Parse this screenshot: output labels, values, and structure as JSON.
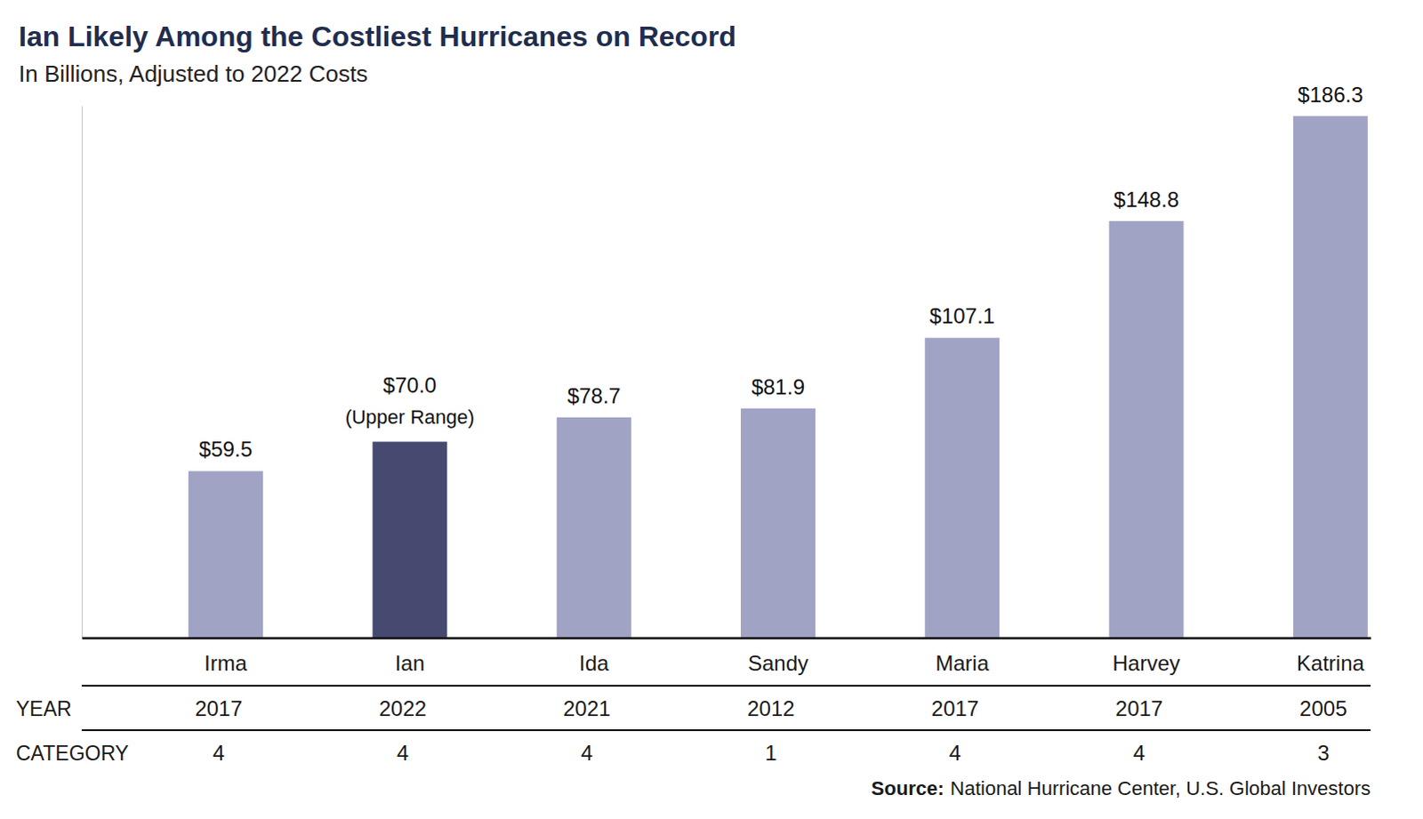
{
  "chart_data": {
    "type": "bar",
    "title": "Ian Likely Among the Costliest Hurricanes on Record",
    "subtitle": "In Billions, Adjusted to 2022 Costs",
    "categories": [
      "Irma",
      "Ian",
      "Ida",
      "Sandy",
      "Maria",
      "Harvey",
      "Katrina"
    ],
    "values": [
      59.5,
      70.0,
      78.7,
      81.9,
      107.1,
      148.8,
      186.3
    ],
    "value_labels": [
      "$59.5",
      "$70.0",
      "$78.7",
      "$81.9",
      "$107.1",
      "$148.8",
      "$186.3"
    ],
    "data_labels": true,
    "colors": [
      "#a0a3c4",
      "#474a70",
      "#a0a3c4",
      "#a0a3c4",
      "#a0a3c4",
      "#a0a3c4",
      "#a0a3c4"
    ],
    "ylim": [
      0,
      190
    ],
    "tick_labels": "x",
    "grid": false,
    "annotations": [
      {
        "category": "Ian",
        "text": "(Upper Range)"
      }
    ],
    "table_rows": [
      {
        "label": "YEAR",
        "values": [
          2017,
          2022,
          2021,
          2012,
          2017,
          2017,
          2005
        ]
      },
      {
        "label": "CATEGORY",
        "values": [
          4,
          4,
          4,
          1,
          4,
          4,
          3
        ]
      }
    ],
    "source": {
      "label": "Source:",
      "text": "National Hurricane Center, U.S. Global Investors"
    }
  }
}
